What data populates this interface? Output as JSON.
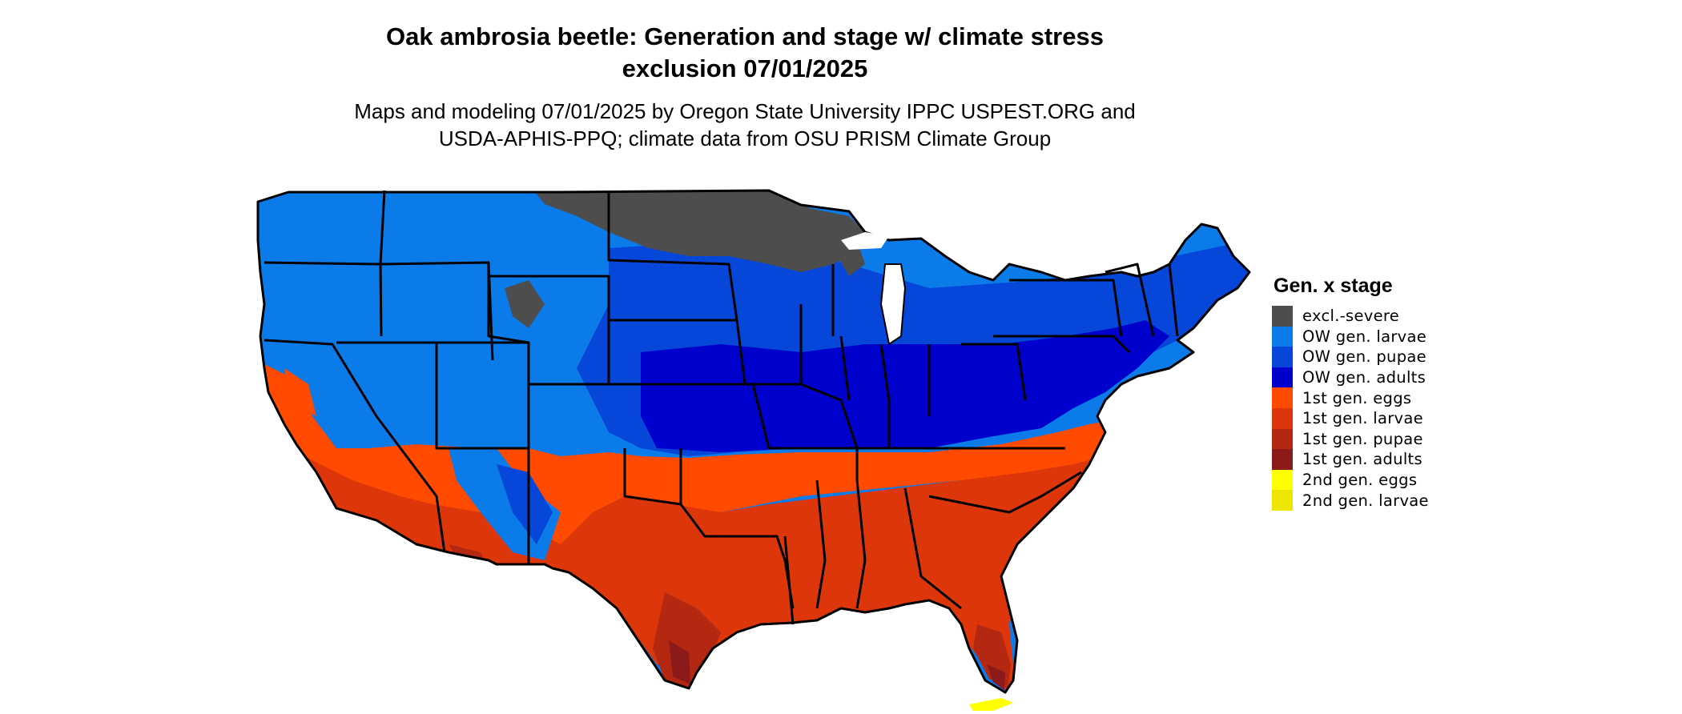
{
  "header": {
    "title_line1": "Oak ambrosia beetle: Generation and stage w/ climate stress",
    "title_line2": "exclusion 07/01/2025",
    "subtitle_line1": "Maps and modeling 07/01/2025 by Oregon State University IPPC USPEST.ORG and",
    "subtitle_line2": "USDA-APHIS-PPQ; climate data from OSU PRISM Climate Group"
  },
  "legend": {
    "title": "Gen. x stage",
    "items": [
      {
        "label": "excl.-severe",
        "color": "#4d4d4d"
      },
      {
        "label": "OW gen. larvae",
        "color": "#0a7be8"
      },
      {
        "label": "OW gen. pupae",
        "color": "#0646d9"
      },
      {
        "label": "OW gen. adults",
        "color": "#0000cc"
      },
      {
        "label": "1st gen. eggs",
        "color": "#ff4a00"
      },
      {
        "label": "1st gen. larvae",
        "color": "#dc360a"
      },
      {
        "label": "1st gen. pupae",
        "color": "#b42812"
      },
      {
        "label": "1st gen. adults",
        "color": "#8c1a1a"
      },
      {
        "label": "2nd gen. eggs",
        "color": "#ffff00"
      },
      {
        "label": "2nd gen. larvae",
        "color": "#eee600"
      }
    ]
  }
}
